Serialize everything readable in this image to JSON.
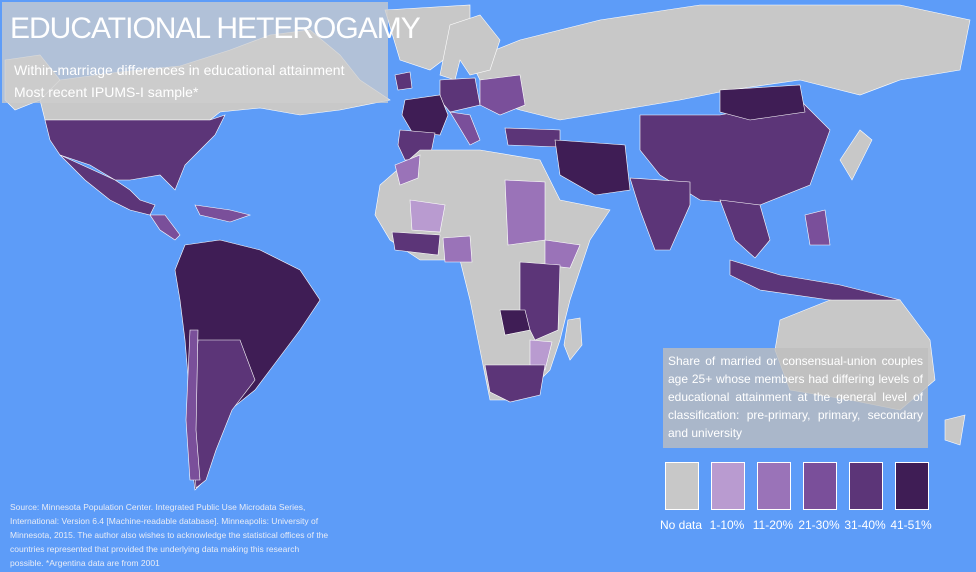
{
  "header": {
    "title": "EDUCATIONAL HETEROGAMY",
    "subtitle": [
      "Within-marriage differences in educational attainment",
      "Most recent IPUMS-I sample*"
    ]
  },
  "legend": {
    "description": "Share of married or consensual-union couples age 25+ whose members had differing levels of educational attainment at the general level of classification: pre-primary, primary, secondary and university",
    "items": [
      {
        "label": "No data",
        "color": "#c8c8c8"
      },
      {
        "label": "1-10%",
        "color": "#b99bd0"
      },
      {
        "label": "11-20%",
        "color": "#9a73b8"
      },
      {
        "label": "21-30%",
        "color": "#7a4f9a"
      },
      {
        "label": "31-40%",
        "color": "#5c3578"
      },
      {
        "label": "41-51%",
        "color": "#3f1d55"
      }
    ]
  },
  "source": "Source: Minnesota Population Center.  Integrated Public Use Microdata Series, International: Version 6.4 [Machine-readable database]. Minneapolis: University of Minnesota, 2015.  The author also wishes to acknowledge the statistical offices of the countries represented that provided the underlying data making this research possible. *Argentina data are from 2001"
}
